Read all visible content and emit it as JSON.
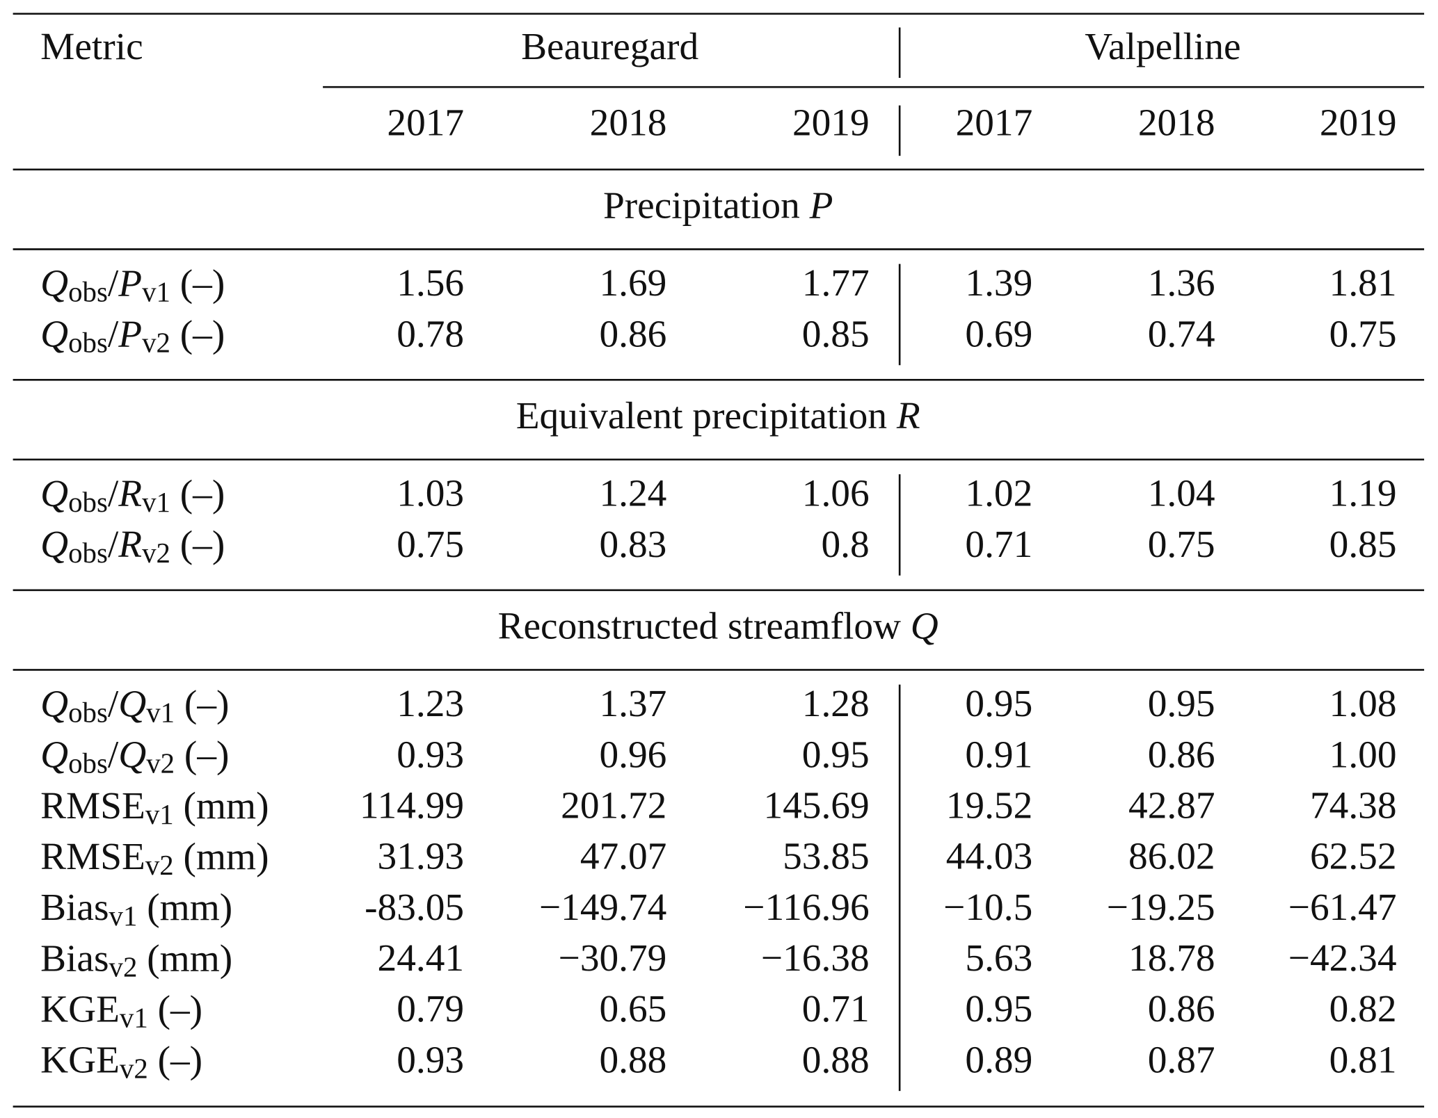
{
  "header": {
    "metric": "Metric",
    "groups": [
      "Beauregard",
      "Valpelline"
    ],
    "years": [
      "2017",
      "2018",
      "2019",
      "2017",
      "2018",
      "2019"
    ]
  },
  "sections": [
    {
      "title": [
        {
          "text": "Precipitation "
        },
        {
          "text": "P",
          "style": "italic"
        }
      ],
      "rows": [
        {
          "label": [
            {
              "text": "Q",
              "style": "italic"
            },
            {
              "text": "obs",
              "style": "sub"
            },
            {
              "text": "/"
            },
            {
              "text": "P",
              "style": "italic"
            },
            {
              "text": "v1",
              "style": "sub"
            },
            {
              "text": " (–)"
            }
          ],
          "cells": [
            "1.56",
            "1.69",
            "1.77",
            "1.39",
            "1.36",
            "1.81"
          ]
        },
        {
          "label": [
            {
              "text": "Q",
              "style": "italic"
            },
            {
              "text": "obs",
              "style": "sub"
            },
            {
              "text": "/"
            },
            {
              "text": "P",
              "style": "italic"
            },
            {
              "text": "v2",
              "style": "sub"
            },
            {
              "text": " (–)"
            }
          ],
          "cells": [
            "0.78",
            "0.86",
            "0.85",
            "0.69",
            "0.74",
            "0.75"
          ]
        }
      ]
    },
    {
      "title": [
        {
          "text": "Equivalent precipitation "
        },
        {
          "text": "R",
          "style": "italic"
        }
      ],
      "rows": [
        {
          "label": [
            {
              "text": "Q",
              "style": "italic"
            },
            {
              "text": "obs",
              "style": "sub"
            },
            {
              "text": "/"
            },
            {
              "text": "R",
              "style": "italic"
            },
            {
              "text": "v1",
              "style": "sub"
            },
            {
              "text": " (–)"
            }
          ],
          "cells": [
            "1.03",
            "1.24",
            "1.06",
            "1.02",
            "1.04",
            "1.19"
          ]
        },
        {
          "label": [
            {
              "text": "Q",
              "style": "italic"
            },
            {
              "text": "obs",
              "style": "sub"
            },
            {
              "text": "/"
            },
            {
              "text": "R",
              "style": "italic"
            },
            {
              "text": "v2",
              "style": "sub"
            },
            {
              "text": " (–)"
            }
          ],
          "cells": [
            "0.75",
            "0.83",
            "0.8",
            "0.71",
            "0.75",
            "0.85"
          ]
        }
      ]
    },
    {
      "title": [
        {
          "text": "Reconstructed streamflow "
        },
        {
          "text": "Q",
          "style": "italic"
        }
      ],
      "rows": [
        {
          "label": [
            {
              "text": "Q",
              "style": "italic"
            },
            {
              "text": "obs",
              "style": "sub"
            },
            {
              "text": "/"
            },
            {
              "text": "Q",
              "style": "italic"
            },
            {
              "text": "v1",
              "style": "sub"
            },
            {
              "text": " (–)"
            }
          ],
          "cells": [
            "1.23",
            "1.37",
            "1.28",
            "0.95",
            "0.95",
            "1.08"
          ]
        },
        {
          "label": [
            {
              "text": "Q",
              "style": "italic"
            },
            {
              "text": "obs",
              "style": "sub"
            },
            {
              "text": "/"
            },
            {
              "text": "Q",
              "style": "italic"
            },
            {
              "text": "v2",
              "style": "sub"
            },
            {
              "text": " (–)"
            }
          ],
          "cells": [
            "0.93",
            "0.96",
            "0.95",
            "0.91",
            "0.86",
            "1.00"
          ]
        },
        {
          "label": [
            {
              "text": "RMSE"
            },
            {
              "text": "v1",
              "style": "sub"
            },
            {
              "text": " (mm)"
            }
          ],
          "cells": [
            "114.99",
            "201.72",
            "145.69",
            "19.52",
            "42.87",
            "74.38"
          ]
        },
        {
          "label": [
            {
              "text": "RMSE"
            },
            {
              "text": "v2",
              "style": "sub"
            },
            {
              "text": " (mm)"
            }
          ],
          "cells": [
            "31.93",
            "47.07",
            "53.85",
            "44.03",
            "86.02",
            "62.52"
          ]
        },
        {
          "label": [
            {
              "text": "Bias"
            },
            {
              "text": "v1",
              "style": "sub"
            },
            {
              "text": " (mm)"
            }
          ],
          "cells": [
            "-83.05",
            "−149.74",
            "−116.96",
            "−10.5",
            "−19.25",
            "−61.47"
          ]
        },
        {
          "label": [
            {
              "text": "Bias"
            },
            {
              "text": "v2",
              "style": "sub"
            },
            {
              "text": " (mm)"
            }
          ],
          "cells": [
            "24.41",
            "−30.79",
            "−16.38",
            "5.63",
            "18.78",
            "−42.34"
          ]
        },
        {
          "label": [
            {
              "text": "KGE"
            },
            {
              "text": "v1",
              "style": "sub"
            },
            {
              "text": " (–)"
            }
          ],
          "cells": [
            "0.79",
            "0.65",
            "0.71",
            "0.95",
            "0.86",
            "0.82"
          ]
        },
        {
          "label": [
            {
              "text": "KGE"
            },
            {
              "text": "v2",
              "style": "sub"
            },
            {
              "text": " (–)"
            }
          ],
          "cells": [
            "0.93",
            "0.88",
            "0.88",
            "0.89",
            "0.87",
            "0.81"
          ]
        }
      ]
    }
  ]
}
